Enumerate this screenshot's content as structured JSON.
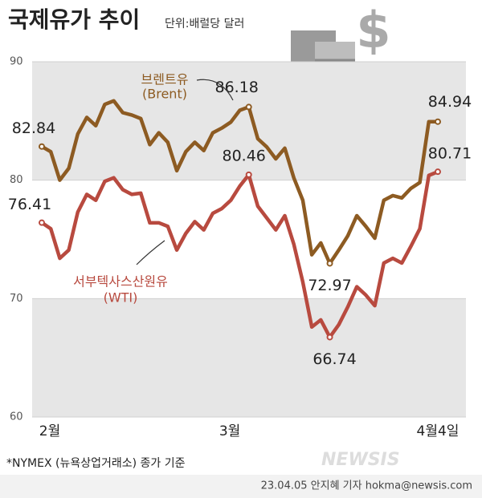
{
  "title": "국제유가 추이",
  "unit": "단위:배럴당 달러",
  "chart_data": {
    "type": "line",
    "categories": [
      "2월",
      null,
      null,
      null,
      null,
      null,
      null,
      null,
      null,
      null,
      null,
      null,
      null,
      null,
      null,
      null,
      null,
      null,
      null,
      null,
      "3월",
      null,
      null,
      null,
      null,
      null,
      null,
      null,
      null,
      null,
      null,
      null,
      null,
      null,
      null,
      null,
      null,
      null,
      null,
      null,
      null,
      null,
      null,
      null,
      "4월4일"
    ],
    "series": [
      {
        "name": "브렌트유",
        "name_sub": "(Brent)",
        "color": "#8d5b22",
        "values": [
          82.84,
          82.4,
          80.0,
          81.0,
          83.9,
          85.3,
          84.6,
          86.4,
          86.7,
          85.7,
          85.5,
          85.2,
          83.0,
          84.0,
          83.2,
          80.8,
          82.4,
          83.2,
          82.5,
          84.0,
          84.4,
          84.9,
          85.9,
          86.18,
          83.5,
          82.8,
          81.8,
          82.7,
          80.2,
          78.3,
          73.7,
          74.7,
          72.97,
          74.1,
          75.3,
          77.0,
          76.1,
          75.1,
          78.3,
          78.7,
          78.5,
          79.3,
          79.8,
          84.94,
          84.94
        ],
        "value_labels": [
          "82.84",
          null,
          null,
          null,
          null,
          null,
          null,
          null,
          null,
          null,
          null,
          null,
          null,
          null,
          null,
          null,
          null,
          null,
          null,
          null,
          null,
          null,
          null,
          "86.18",
          null,
          null,
          null,
          null,
          null,
          null,
          null,
          null,
          "72.97",
          null,
          null,
          null,
          null,
          null,
          null,
          null,
          null,
          null,
          null,
          null,
          "84.94"
        ]
      },
      {
        "name": "서부텍사스산원유",
        "name_sub": "(WTI)",
        "color": "#b84a3f",
        "values": [
          76.41,
          75.9,
          73.4,
          74.1,
          77.3,
          78.8,
          78.3,
          79.9,
          80.2,
          79.2,
          78.8,
          78.9,
          76.4,
          76.4,
          76.1,
          74.1,
          75.5,
          76.5,
          75.8,
          77.2,
          77.6,
          78.3,
          79.5,
          80.46,
          77.8,
          76.8,
          75.8,
          77.0,
          74.6,
          71.4,
          67.6,
          68.2,
          66.74,
          67.8,
          69.3,
          71.0,
          70.3,
          69.4,
          73.0,
          73.4,
          73.0,
          74.4,
          75.9,
          80.4,
          80.71
        ],
        "value_labels": [
          "76.41",
          null,
          null,
          null,
          null,
          null,
          null,
          null,
          null,
          null,
          null,
          null,
          null,
          null,
          null,
          null,
          null,
          null,
          null,
          null,
          null,
          null,
          null,
          "80.46",
          null,
          null,
          null,
          null,
          null,
          null,
          null,
          null,
          "66.74",
          null,
          null,
          null,
          null,
          null,
          null,
          null,
          null,
          null,
          null,
          null,
          "80.71"
        ]
      }
    ],
    "ylim": [
      60,
      90
    ],
    "yticks": [
      60,
      70,
      80,
      90
    ]
  },
  "footnote": "*NYMEX (뉴욕상업거래소) 종가 기준",
  "credit": "23.04.05 안지혜 기자 hokma@newsis.com",
  "logo": "NEWSIS"
}
